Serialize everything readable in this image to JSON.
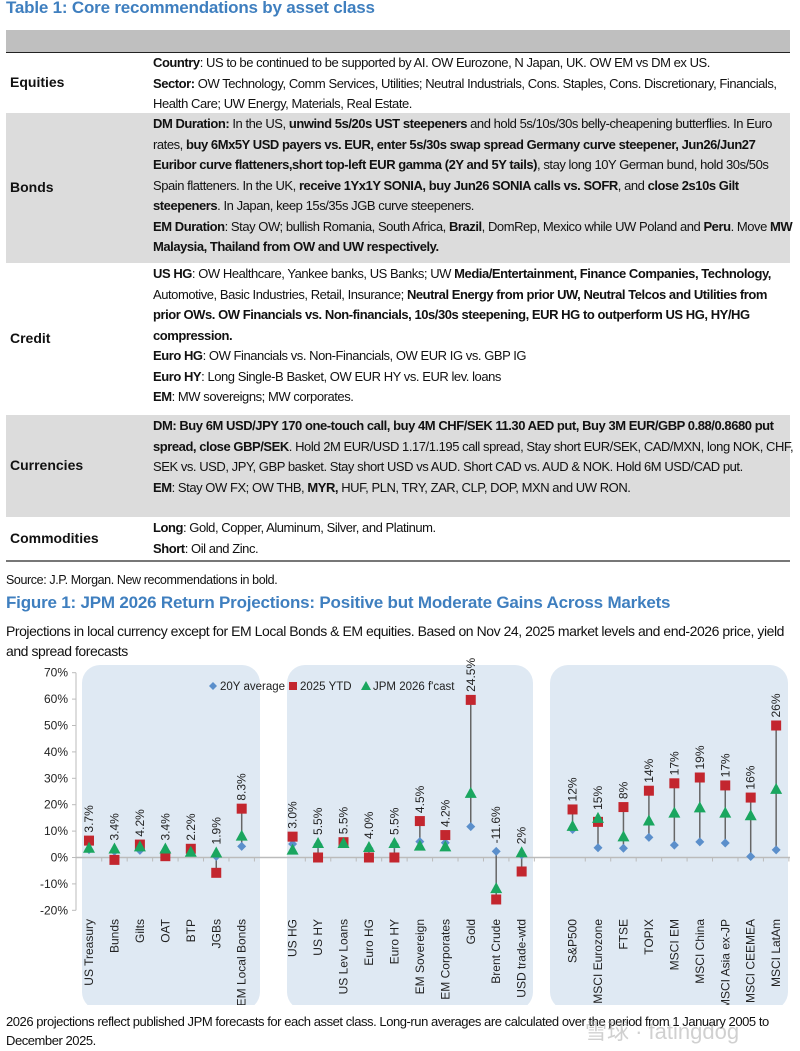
{
  "table": {
    "title": "Table 1: Core recommendations by asset class",
    "rows": [
      {
        "label": "Equities",
        "paras": [
          [
            {
              "t": "Country",
              "b": true
            },
            {
              "t": ": US to be continued to be supported by AI. OW Eurozone, N Japan, UK. OW EM vs DM ex US."
            }
          ],
          [
            {
              "t": "Sector:",
              "b": true
            },
            {
              "t": " OW Technology, Comm Services, Utilities; Neutral Industrials, Cons. Staples, Cons. Discretionary, Financials, Health Care; UW Energy, Materials, Real Estate."
            }
          ]
        ]
      },
      {
        "label": "Bonds",
        "paras": [
          [
            {
              "t": "DM Duration:",
              "b": true
            },
            {
              "t": " In the US, "
            },
            {
              "t": "unwind 5s/20s UST steepeners",
              "b": true
            },
            {
              "t": " and hold 5s/10s/30s belly-cheapening butterflies. In Euro rates, "
            },
            {
              "t": "buy 6Mx5Y USD payers vs. EUR, enter 5s/30s swap spread Germany curve steepener, Jun26/Jun27 Euribor curve flatteners,short top-left EUR gamma (2Y and 5Y tails)",
              "b": true
            },
            {
              "t": ", stay long 10Y German bund, hold 30s/50s Spain flatteners. In the UK, "
            },
            {
              "t": "receive 1Yx1Y SONIA, buy Jun26 SONIA calls vs. SOFR",
              "b": true
            },
            {
              "t": ", and "
            },
            {
              "t": "close 2s10s Gilt steepeners",
              "b": true
            },
            {
              "t": ". In Japan, keep 15s/35s JGB curve steepeners."
            }
          ],
          [
            {
              "t": "EM Duration",
              "b": true
            },
            {
              "t": ": Stay OW; bullish Romania, South Africa, "
            },
            {
              "t": "Brazil",
              "b": true
            },
            {
              "t": ", DomRep, Mexico while UW Poland and "
            },
            {
              "t": "Peru",
              "b": true
            },
            {
              "t": ". Move "
            },
            {
              "t": "MW Malaysia, Thailand from OW and UW respectively.",
              "b": true
            }
          ]
        ]
      },
      {
        "label": "Credit",
        "paras": [
          [
            {
              "t": "US HG",
              "b": true
            },
            {
              "t": ": OW Healthcare, Yankee banks, US Banks; UW "
            },
            {
              "t": "Media/Entertainment, Finance Companies, Technology,",
              "b": true
            },
            {
              "t": " Automotive, Basic Industries, Retail, Insurance; "
            },
            {
              "t": "Neutral Energy from prior UW, Neutral Telcos and Utilities from prior OWs. OW Financials vs. Non-financials, 10s/30s steepening, EUR HG to outperform US HG, HY/HG compression.",
              "b": true
            }
          ],
          [
            {
              "t": "Euro HG",
              "b": true
            },
            {
              "t": ": OW Financials vs. Non-Financials, OW EUR IG vs. GBP IG"
            }
          ],
          [
            {
              "t": "Euro HY",
              "b": true
            },
            {
              "t": ": Long Single-B Basket, OW EUR HY vs. EUR lev. loans"
            }
          ],
          [
            {
              "t": "EM",
              "b": true
            },
            {
              "t": ": MW sovereigns; MW corporates."
            }
          ]
        ]
      },
      {
        "label": "Currencies",
        "paras": [
          [
            {
              "t": "DM: Buy 6M USD/JPY 170 one-touch call, buy 4M CHF/SEK 11.30 AED put, Buy 3M EUR/GBP 0.88/0.8680 put spread, close GBP/SEK",
              "b": true
            },
            {
              "t": ". Hold 2M EUR/USD 1.17/1.195 call spread, Stay short EUR/SEK, CAD/MXN, long NOK, CHF, SEK vs. USD, JPY, GBP basket. Stay short USD vs AUD. Short CAD vs. AUD & NOK. Hold 6M USD/CAD put."
            }
          ],
          [
            {
              "t": "EM",
              "b": true
            },
            {
              "t": ": Stay OW FX; OW THB, "
            },
            {
              "t": "MYR,",
              "b": true
            },
            {
              "t": " HUF, PLN, TRY, ZAR, CLP, DOP, MXN and UW RON."
            }
          ]
        ]
      },
      {
        "label": "Commodities",
        "paras": [
          [
            {
              "t": "Long",
              "b": true
            },
            {
              "t": ": Gold, Copper, Aluminum, Silver, and Platinum."
            }
          ],
          [
            {
              "t": "Short",
              "b": true
            },
            {
              "t": ": Oil and Zinc."
            }
          ]
        ]
      }
    ],
    "source": "Source: J.P. Morgan. New recommendations in bold."
  },
  "figure": {
    "title": "Figure 1: JPM 2026 Return Projections: Positive but Moderate Gains Across Markets",
    "subtitle": "Projections in local currency except for EM Local Bonds & EM equities. Based on Nov 24, 2025 market levels and end-2026 price, yield and spread forecasts",
    "footnote": "2026 projections reflect published JPM forecasts for each asset class. Long-run averages are calculated over the period from 1 January 2005 to December 2025.",
    "watermark": "雪球 · fatingdog"
  },
  "chart_data": {
    "type": "scatter",
    "title": "JPM 2026 Return Projections",
    "ylim": [
      -20,
      70
    ],
    "yticks": [
      "-20%",
      "-10%",
      "0%",
      "10%",
      "20%",
      "30%",
      "40%",
      "50%",
      "60%",
      "70%"
    ],
    "ytick_values": [
      -20,
      -10,
      0,
      10,
      20,
      30,
      40,
      50,
      60,
      70
    ],
    "groups": [
      {
        "name": "Rates",
        "categories": [
          "US Treasury",
          "Bunds",
          "Gilts",
          "OAT",
          "BTP",
          "JGBs",
          "EM Local Bonds"
        ]
      },
      {
        "name": "Credit & Commodities",
        "categories": [
          "US HG",
          "US HY",
          "US Lev Loans",
          "Euro HG",
          "Euro HY",
          "EM Sovereign",
          "EM Corporates",
          "Gold",
          "Brent Crude",
          "USD trade-wtd"
        ]
      },
      {
        "name": "Equities",
        "categories": [
          "S&P500",
          "MSCI Eurozone",
          "FTSE",
          "TOPIX",
          "MSCI EM",
          "MSCI China",
          "MSCI Asia ex-JP",
          "MSCI CEEMEA",
          "MSCI LatAm"
        ]
      }
    ],
    "series": [
      {
        "name": "20Y average",
        "marker": "diamond",
        "color": "#5b8fcb",
        "values": [
          3.0,
          2.3,
          2.7,
          2.5,
          2.0,
          0.4,
          4.2,
          5.1,
          5.0,
          5.5,
          3.5,
          5.0,
          6.0,
          5.6,
          11.7,
          2.3,
          1.0,
          10.6,
          3.7,
          3.5,
          7.6,
          4.7,
          5.9,
          5.5,
          0.4,
          2.9
        ]
      },
      {
        "name": "2025 YTD",
        "marker": "square",
        "color": "#c3262e",
        "values": [
          6.4,
          -0.9,
          4.9,
          0.5,
          3.3,
          -5.8,
          18.5,
          7.9,
          0.0,
          5.8,
          0.0,
          0.0,
          13.8,
          8.5,
          59.7,
          -15.9,
          -5.3,
          18.2,
          13.5,
          19.1,
          25.3,
          28.1,
          30.3,
          27.3,
          22.7,
          50.0
        ]
      },
      {
        "name": "JPM 2026 f'cast",
        "marker": "triangle",
        "color": "#1aa65f",
        "values": [
          3.7,
          3.4,
          4.2,
          3.4,
          2.2,
          1.9,
          8.3,
          3.0,
          5.5,
          5.5,
          4.0,
          5.5,
          4.5,
          4.2,
          24.5,
          -11.6,
          2.0,
          12,
          15,
          8,
          14,
          17,
          19,
          17,
          16,
          26
        ]
      }
    ],
    "data_labels": [
      "3.7%",
      "3.4%",
      "4.2%",
      "3.4%",
      "2.2%",
      "1.9%",
      "8.3%",
      "3.0%",
      "5.5%",
      "5.5%",
      "4.0%",
      "5.5%",
      "4.5%",
      "4.2%",
      "24.5%",
      "-11.6%",
      "2%",
      "12%",
      "15%",
      "8%",
      "14%",
      "17%",
      "19%",
      "17%",
      "16%",
      "26%"
    ],
    "legend": [
      "20Y average",
      "2025 YTD",
      "JPM 2026 f'cast"
    ],
    "legend_position": "top",
    "grid": false
  }
}
